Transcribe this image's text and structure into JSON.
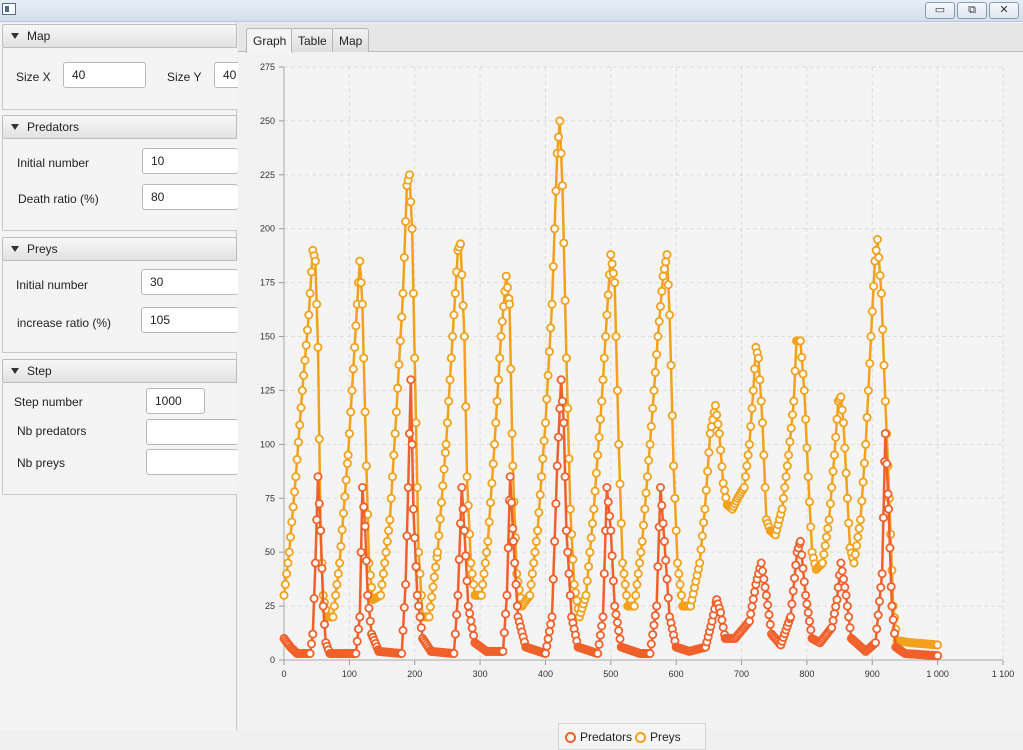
{
  "window": {
    "minimize": "▭",
    "maximize": "⧉",
    "close": "✕"
  },
  "sections": {
    "map": {
      "title": "Map",
      "size_x_label": "Size X",
      "size_x_value": "40",
      "size_y_label": "Size Y",
      "size_y_value": "40"
    },
    "predators": {
      "title": "Predators",
      "initial_label": "Initial number",
      "initial_value": "10",
      "death_label": "Death ratio (%)",
      "death_value": "80"
    },
    "preys": {
      "title": "Preys",
      "initial_label": "Initial number",
      "initial_value": "30",
      "increase_label": "increase ratio (%)",
      "increase_value": "105"
    },
    "step": {
      "title": "Step",
      "step_label": "Step number",
      "step_value": "1000",
      "nb_predators_label": "Nb predators",
      "nb_predators_value": "",
      "nb_preys_label": "Nb preys",
      "nb_preys_value": ""
    }
  },
  "tabs": [
    {
      "label": "Graph",
      "active": true
    },
    {
      "label": "Table",
      "active": false
    },
    {
      "label": "Map",
      "active": false
    }
  ],
  "chart_data": {
    "type": "line",
    "xlim": [
      0,
      1100
    ],
    "ylim": [
      0,
      275
    ],
    "x_ticks": [
      "0",
      "100",
      "200",
      "300",
      "400",
      "500",
      "600",
      "700",
      "800",
      "900",
      "1 000",
      "1 100"
    ],
    "y_ticks": [
      "0",
      "25",
      "50",
      "75",
      "100",
      "125",
      "150",
      "175",
      "200",
      "225",
      "250",
      "275"
    ],
    "grid": true,
    "legend_position": "bottom-center",
    "series": [
      {
        "name": "Predators",
        "color": "#f0602a",
        "points": [
          [
            0,
            10
          ],
          [
            10,
            6
          ],
          [
            20,
            3
          ],
          [
            40,
            3
          ],
          [
            44,
            12
          ],
          [
            48,
            45
          ],
          [
            52,
            85
          ],
          [
            56,
            60
          ],
          [
            60,
            25
          ],
          [
            64,
            8
          ],
          [
            70,
            3
          ],
          [
            110,
            3
          ],
          [
            116,
            20
          ],
          [
            120,
            80
          ],
          [
            124,
            62
          ],
          [
            128,
            30
          ],
          [
            134,
            12
          ],
          [
            145,
            4
          ],
          [
            180,
            3
          ],
          [
            186,
            35
          ],
          [
            190,
            80
          ],
          [
            194,
            130
          ],
          [
            198,
            70
          ],
          [
            204,
            30
          ],
          [
            212,
            10
          ],
          [
            225,
            4
          ],
          [
            260,
            3
          ],
          [
            266,
            30
          ],
          [
            272,
            80
          ],
          [
            276,
            60
          ],
          [
            282,
            25
          ],
          [
            292,
            8
          ],
          [
            310,
            4
          ],
          [
            335,
            4
          ],
          [
            341,
            30
          ],
          [
            346,
            85
          ],
          [
            351,
            55
          ],
          [
            358,
            20
          ],
          [
            370,
            6
          ],
          [
            400,
            3
          ],
          [
            410,
            20
          ],
          [
            418,
            90
          ],
          [
            424,
            130
          ],
          [
            428,
            110
          ],
          [
            432,
            60
          ],
          [
            440,
            20
          ],
          [
            450,
            6
          ],
          [
            480,
            3
          ],
          [
            488,
            20
          ],
          [
            494,
            80
          ],
          [
            500,
            60
          ],
          [
            506,
            25
          ],
          [
            516,
            6
          ],
          [
            545,
            3
          ],
          [
            560,
            3
          ],
          [
            570,
            25
          ],
          [
            576,
            80
          ],
          [
            582,
            55
          ],
          [
            590,
            20
          ],
          [
            600,
            6
          ],
          [
            620,
            4
          ],
          [
            645,
            6
          ],
          [
            655,
            18
          ],
          [
            662,
            28
          ],
          [
            668,
            22
          ],
          [
            675,
            10
          ],
          [
            690,
            10
          ],
          [
            712,
            18
          ],
          [
            722,
            35
          ],
          [
            730,
            45
          ],
          [
            738,
            30
          ],
          [
            746,
            12
          ],
          [
            760,
            7
          ],
          [
            775,
            20
          ],
          [
            785,
            50
          ],
          [
            790,
            55
          ],
          [
            798,
            30
          ],
          [
            808,
            10
          ],
          [
            820,
            8
          ],
          [
            838,
            15
          ],
          [
            846,
            28
          ],
          [
            852,
            45
          ],
          [
            860,
            30
          ],
          [
            868,
            10
          ],
          [
            890,
            4
          ],
          [
            905,
            8
          ],
          [
            915,
            40
          ],
          [
            920,
            105
          ],
          [
            925,
            70
          ],
          [
            930,
            25
          ],
          [
            936,
            6
          ],
          [
            950,
            3
          ],
          [
            1000,
            2
          ]
        ]
      },
      {
        "name": "Preys",
        "color": "#f3a11c",
        "points": [
          [
            0,
            30
          ],
          [
            8,
            50
          ],
          [
            18,
            85
          ],
          [
            28,
            125
          ],
          [
            38,
            160
          ],
          [
            44,
            190
          ],
          [
            48,
            185
          ],
          [
            52,
            145
          ],
          [
            56,
            60
          ],
          [
            60,
            30
          ],
          [
            66,
            20
          ],
          [
            75,
            20
          ],
          [
            85,
            45
          ],
          [
            98,
            95
          ],
          [
            108,
            145
          ],
          [
            116,
            185
          ],
          [
            120,
            165
          ],
          [
            126,
            90
          ],
          [
            130,
            45
          ],
          [
            136,
            28
          ],
          [
            148,
            30
          ],
          [
            162,
            65
          ],
          [
            172,
            115
          ],
          [
            182,
            170
          ],
          [
            188,
            220
          ],
          [
            192,
            225
          ],
          [
            196,
            200
          ],
          [
            202,
            110
          ],
          [
            206,
            50
          ],
          [
            212,
            20
          ],
          [
            222,
            20
          ],
          [
            235,
            50
          ],
          [
            248,
            100
          ],
          [
            258,
            150
          ],
          [
            266,
            190
          ],
          [
            270,
            193
          ],
          [
            276,
            150
          ],
          [
            280,
            85
          ],
          [
            286,
            45
          ],
          [
            292,
            30
          ],
          [
            302,
            30
          ],
          [
            312,
            55
          ],
          [
            322,
            100
          ],
          [
            332,
            150
          ],
          [
            340,
            178
          ],
          [
            345,
            165
          ],
          [
            350,
            90
          ],
          [
            356,
            40
          ],
          [
            364,
            25
          ],
          [
            376,
            30
          ],
          [
            388,
            60
          ],
          [
            400,
            110
          ],
          [
            410,
            165
          ],
          [
            418,
            235
          ],
          [
            422,
            250
          ],
          [
            426,
            220
          ],
          [
            432,
            140
          ],
          [
            438,
            70
          ],
          [
            444,
            35
          ],
          [
            452,
            20
          ],
          [
            462,
            30
          ],
          [
            474,
            70
          ],
          [
            486,
            120
          ],
          [
            494,
            160
          ],
          [
            500,
            188
          ],
          [
            506,
            175
          ],
          [
            512,
            100
          ],
          [
            518,
            45
          ],
          [
            526,
            25
          ],
          [
            536,
            25
          ],
          [
            548,
            55
          ],
          [
            560,
            100
          ],
          [
            572,
            150
          ],
          [
            580,
            178
          ],
          [
            586,
            188
          ],
          [
            590,
            160
          ],
          [
            596,
            90
          ],
          [
            602,
            45
          ],
          [
            610,
            25
          ],
          [
            622,
            25
          ],
          [
            636,
            45
          ],
          [
            644,
            70
          ],
          [
            652,
            105
          ],
          [
            660,
            118
          ],
          [
            666,
            105
          ],
          [
            672,
            82
          ],
          [
            678,
            72
          ],
          [
            686,
            70
          ],
          [
            694,
            75
          ],
          [
            704,
            80
          ],
          [
            712,
            100
          ],
          [
            718,
            125
          ],
          [
            722,
            145
          ],
          [
            726,
            140
          ],
          [
            732,
            110
          ],
          [
            738,
            65
          ],
          [
            744,
            60
          ],
          [
            752,
            58
          ],
          [
            762,
            70
          ],
          [
            772,
            95
          ],
          [
            780,
            120
          ],
          [
            784,
            148
          ],
          [
            790,
            148
          ],
          [
            796,
            125
          ],
          [
            802,
            85
          ],
          [
            808,
            50
          ],
          [
            814,
            42
          ],
          [
            824,
            45
          ],
          [
            834,
            65
          ],
          [
            842,
            95
          ],
          [
            848,
            120
          ],
          [
            852,
            122
          ],
          [
            856,
            110
          ],
          [
            862,
            75
          ],
          [
            866,
            52
          ],
          [
            872,
            45
          ],
          [
            882,
            65
          ],
          [
            890,
            100
          ],
          [
            898,
            150
          ],
          [
            904,
            185
          ],
          [
            908,
            195
          ],
          [
            914,
            170
          ],
          [
            920,
            120
          ],
          [
            926,
            75
          ],
          [
            932,
            25
          ],
          [
            938,
            9
          ],
          [
            960,
            8
          ],
          [
            1000,
            7
          ]
        ]
      }
    ]
  }
}
